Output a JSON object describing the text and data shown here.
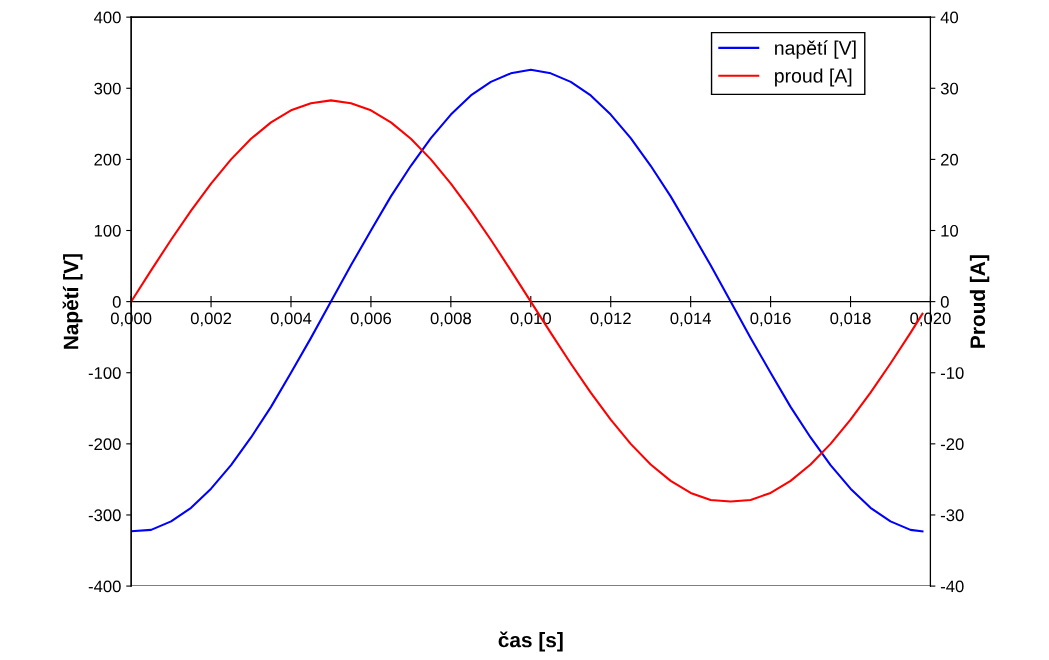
{
  "chart_data": {
    "type": "line",
    "x": [
      0,
      0.0005,
      0.001,
      0.0015,
      0.002,
      0.0025,
      0.003,
      0.0035,
      0.004,
      0.0045,
      0.005,
      0.0055,
      0.006,
      0.0065,
      0.007,
      0.0075,
      0.008,
      0.0085,
      0.009,
      0.0095,
      0.01,
      0.0105,
      0.011,
      0.0115,
      0.012,
      0.0125,
      0.013,
      0.0135,
      0.014,
      0.0145,
      0.015,
      0.0155,
      0.016,
      0.0165,
      0.017,
      0.0175,
      0.018,
      0.0185,
      0.019,
      0.0195,
      0.0198
    ],
    "series": [
      {
        "name": "napětí [V]",
        "color": "#0000ff",
        "values": [
          -323,
          -321,
          -309,
          -290,
          -263,
          -230,
          -191,
          -148,
          -100,
          -51,
          0,
          51,
          100,
          148,
          191,
          230,
          263,
          290,
          309,
          321,
          326,
          321,
          309,
          290,
          263,
          230,
          191,
          148,
          100,
          51,
          0,
          -51,
          -100,
          -148,
          -191,
          -230,
          -263,
          -290,
          -309,
          -321,
          -323
        ]
      },
      {
        "name": "proud [A]",
        "color": "#ff0000",
        "axis": "y2",
        "values": [
          0,
          4.4,
          8.7,
          12.8,
          16.6,
          20.0,
          22.9,
          25.2,
          26.9,
          27.9,
          28.3,
          27.9,
          26.9,
          25.2,
          22.9,
          20.0,
          16.6,
          12.8,
          8.7,
          4.4,
          0,
          -4.4,
          -8.7,
          -12.8,
          -16.6,
          -20.0,
          -22.9,
          -25.2,
          -26.9,
          -27.9,
          -28.1,
          -27.9,
          -26.9,
          -25.2,
          -22.9,
          -20.0,
          -16.6,
          -12.8,
          -8.7,
          -4.4,
          -1.7
        ]
      }
    ],
    "xlabel": "čas [s]",
    "ylabel": "Napětí [V]",
    "y2label": "Proud [A]",
    "xlim": [
      0,
      0.02
    ],
    "xticks": [
      {
        "value": 0,
        "label": "0,000"
      },
      {
        "value": 0.002,
        "label": "0,002"
      },
      {
        "value": 0.004,
        "label": "0,004"
      },
      {
        "value": 0.006,
        "label": "0,006"
      },
      {
        "value": 0.008,
        "label": "0,008"
      },
      {
        "value": 0.01,
        "label": "0,010"
      },
      {
        "value": 0.012,
        "label": "0,012"
      },
      {
        "value": 0.014,
        "label": "0,014"
      },
      {
        "value": 0.016,
        "label": "0,016"
      },
      {
        "value": 0.018,
        "label": "0,018"
      },
      {
        "value": 0.02,
        "label": "0,020"
      }
    ],
    "ylim": [
      -400,
      400
    ],
    "yticks": [
      -400,
      -300,
      -200,
      -100,
      0,
      100,
      200,
      300,
      400
    ],
    "y2lim": [
      -40,
      40
    ],
    "y2ticks": [
      -40,
      -30,
      -20,
      -10,
      0,
      10,
      20,
      30,
      40
    ],
    "grid": false,
    "legend": "top right",
    "marker": "none",
    "line_style": "solid"
  }
}
